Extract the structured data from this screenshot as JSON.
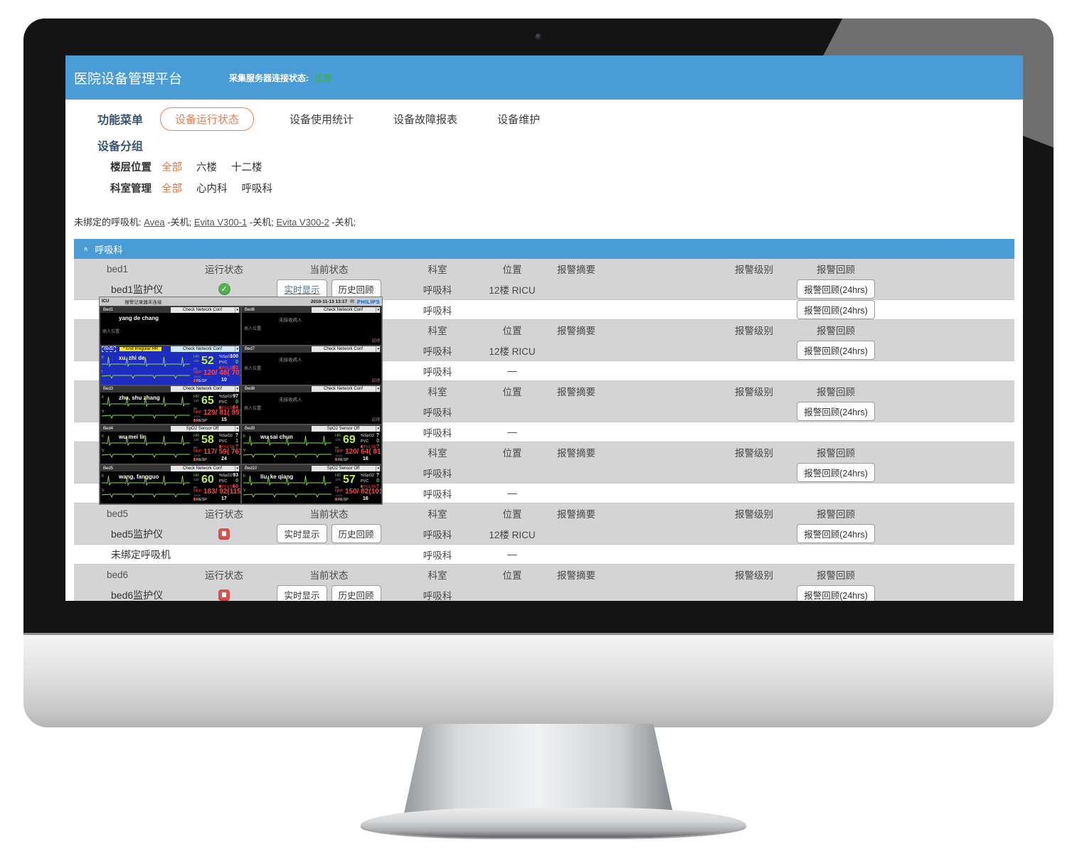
{
  "colors": {
    "accent_blue": "#4a9cd6",
    "accent_orange": "#e8743b",
    "status_green": "#3fae4e",
    "alert_red": "#e25050",
    "row_grey": "#d4d4d4"
  },
  "header": {
    "title": "医院设备管理平台",
    "server_status_label": "采集服务器连接状态:",
    "server_status_value": "正常"
  },
  "nav": {
    "items": [
      {
        "label": "功能菜单"
      },
      {
        "label": "设备运行状态",
        "active": true
      },
      {
        "label": "设备使用统计"
      },
      {
        "label": "设备故障报表"
      },
      {
        "label": "设备维护"
      }
    ]
  },
  "grouping": {
    "title": "设备分组",
    "filters": [
      {
        "label": "楼层位置",
        "options": [
          {
            "label": "全部",
            "active": true
          },
          {
            "label": "六楼",
            "active": false
          },
          {
            "label": "十二楼",
            "active": false
          }
        ]
      },
      {
        "label": "科室管理",
        "options": [
          {
            "label": "全部",
            "active": true
          },
          {
            "label": "心内科",
            "active": false
          },
          {
            "label": "呼吸科",
            "active": false
          }
        ]
      }
    ]
  },
  "unbound": {
    "prefix": "未绑定的呼吸机: ",
    "items": [
      {
        "link": "Avea",
        "suffix": " -关机; "
      },
      {
        "link": "Evita V300-1",
        "suffix": " -关机; "
      },
      {
        "link": "Evita V300-2",
        "suffix": " -关机;"
      }
    ]
  },
  "section": {
    "label": "呼吸科",
    "caret": "∧"
  },
  "table": {
    "realtime_button": "实时显示",
    "history_button": "历史回顾",
    "review_button": "报警回顾(24hrs)",
    "rows": [
      {
        "t": "h",
        "cells": [
          "bed1",
          "运行状态",
          "当前状态",
          "科室",
          "位置",
          "报警摘要",
          "报警级别",
          "报警回顾"
        ]
      },
      {
        "t": "d",
        "name": "bed1监护仪",
        "status": "ok",
        "btns": true,
        "rt_active": true,
        "dept": "呼吸科",
        "loc": "12楼 RICU",
        "review": true
      },
      {
        "t": "p",
        "name": "",
        "red": false,
        "dept": "呼吸科",
        "loc": "",
        "review": true
      },
      {
        "t": "h",
        "cells": [
          "",
          "",
          "",
          "科室",
          "位置",
          "报警摘要",
          "报警级别",
          "报警回顾"
        ]
      },
      {
        "t": "d",
        "name": "",
        "status": "",
        "btns": false,
        "rt_active": false,
        "dept": "呼吸科",
        "loc": "12楼 RICU",
        "review": true
      },
      {
        "t": "p",
        "name": "",
        "red": false,
        "dept": "呼吸科",
        "loc": "—",
        "review": false
      },
      {
        "t": "h",
        "cells": [
          "",
          "",
          "",
          "科室",
          "位置",
          "报警摘要",
          "报警级别",
          "报警回顾"
        ]
      },
      {
        "t": "d",
        "name": "",
        "status": "",
        "btns": false,
        "rt_active": false,
        "dept": "呼吸科",
        "loc": "",
        "review": true
      },
      {
        "t": "p",
        "name": "",
        "red": false,
        "dept": "呼吸科",
        "loc": "—",
        "review": false
      },
      {
        "t": "h",
        "cells": [
          "",
          "",
          "",
          "科室",
          "位置",
          "报警摘要",
          "报警级别",
          "报警回顾"
        ]
      },
      {
        "t": "d",
        "name": "",
        "status": "",
        "btns": false,
        "rt_active": false,
        "dept": "呼吸科",
        "loc": "",
        "review": true
      },
      {
        "t": "p",
        "name": "",
        "red": false,
        "dept": "呼吸科",
        "loc": "—",
        "review": false
      },
      {
        "t": "h",
        "cells": [
          "bed5",
          "运行状态",
          "当前状态",
          "科室",
          "位置",
          "报警摘要",
          "报警级别",
          "报警回顾"
        ]
      },
      {
        "t": "d",
        "name": "bed5监护仪",
        "status": "stop",
        "btns": true,
        "rt_active": false,
        "dept": "呼吸科",
        "loc": "12楼 RICU",
        "review": true
      },
      {
        "t": "p",
        "name": "未绑定呼吸机",
        "red": true,
        "dept": "呼吸科",
        "loc": "—",
        "review": false
      },
      {
        "t": "h",
        "cells": [
          "bed6",
          "运行状态",
          "当前状态",
          "科室",
          "位置",
          "报警摘要",
          "报警级别",
          "报警回顾"
        ]
      },
      {
        "t": "d",
        "name": "bed6监护仪",
        "status": "stop",
        "btns": true,
        "rt_active": false,
        "dept": "呼吸科",
        "loc": "",
        "review": true
      }
    ]
  },
  "monitor_popup": {
    "titlebar": {
      "left": "ICU",
      "center": "报警记录器未连接",
      "datetime": "2010-11-13 13:17",
      "mail_icon": "✉",
      "brand": "PHILIPS"
    },
    "vitals_labels": {
      "hr": "HR",
      "hr_high": "120",
      "hr_low": "50",
      "spo2": "%SpO2",
      "pvc": "PVC",
      "pulse": "PULSE",
      "nbp": "NBP",
      "nbp_time": "13:00",
      "resp": "RESP"
    },
    "beds": [
      {
        "id": "Bed1",
        "kind": "noview",
        "name": "yang de chang",
        "dropdown": "Check Network Conf",
        "location_label": "病人位置:"
      },
      {
        "id": "Bed6",
        "kind": "empty",
        "no_patient": "未接收病人",
        "location_label": "病人位置:",
        "dropdown": "Check Network Conf",
        "corner_tag": "起搏"
      },
      {
        "id": "Bed2",
        "kind": "full",
        "selected": true,
        "alarm": "* End Irregular HR",
        "name": "xu, zhi de",
        "dropdown": "Check Network Conf",
        "leads": [
          "II",
          "I"
        ],
        "hr": "52",
        "spo2": "100",
        "pvc": "0",
        "pulse": "51",
        "nbp": "120/ 48( 70)",
        "resp": "10"
      },
      {
        "id": "Bed7",
        "kind": "empty",
        "no_patient": "未接收病人",
        "location_label": "病人位置:",
        "dropdown": "Check Network Conf",
        "corner_tag": "起搏"
      },
      {
        "id": "Bed3",
        "kind": "full",
        "selected": false,
        "name": "zhu, shu zhang",
        "dropdown": "Check Network Conf",
        "leads": [
          "II",
          "V"
        ],
        "hr": "65",
        "spo2": "97",
        "pvc": "0",
        "pulse": "64",
        "nbp": "129/ 81( 95)",
        "resp": "15"
      },
      {
        "id": "Bed8",
        "kind": "empty",
        "no_patient": "未接收病人",
        "location_label": "病人位置:",
        "dropdown": "Check Network Conf",
        "corner_tag": "起搏"
      },
      {
        "id": "Bed4",
        "kind": "full",
        "selected": false,
        "name": "wu mei lin",
        "dropdown": "SpO2  Sensor Off",
        "leads": [
          "II",
          "V"
        ],
        "hr": "58",
        "spo2": "?",
        "pvc": "1",
        "pulse": "?",
        "nbp": "117/ 59( 76)",
        "resp": "24"
      },
      {
        "id": "Bed9",
        "kind": "full",
        "selected": false,
        "name": "wu sai chun",
        "dropdown": "SpO2  Sensor Off",
        "leads": [
          "II",
          "V"
        ],
        "hr": "69",
        "spo2": "?",
        "pvc": "0",
        "pulse": "?",
        "nbp": "120/ 64( 81)",
        "resp": "16"
      },
      {
        "id": "Bed5",
        "kind": "full",
        "selected": false,
        "name": "wang, fangguo",
        "dropdown": "Check Network Conf",
        "leads": [
          "II",
          "V"
        ],
        "hr": "60",
        "spo2": "93",
        "pvc": "0",
        "pulse": "60",
        "nbp": "183/ 92(115)",
        "resp": "17"
      },
      {
        "id": "Bed10",
        "kind": "full",
        "selected": false,
        "name": "liu, ke qiang",
        "dropdown": "SpO2  Sensor Off",
        "leads": [
          "II",
          "V"
        ],
        "hr": "57",
        "spo2": "?",
        "pvc": "0",
        "pulse": "?",
        "nbp": "150/ 82(101)",
        "resp": "16"
      }
    ]
  }
}
